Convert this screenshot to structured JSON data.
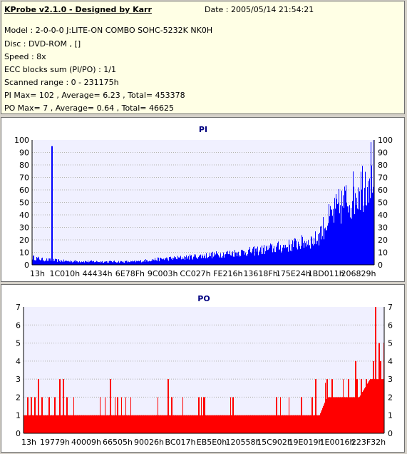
{
  "info": {
    "title": "KProbe v2.1.0 - Designed by Karr",
    "date": "Date : 2005/05/14 21:54:21",
    "lines": [
      "Model : 2-0-0-0 J:LITE-ON COMBO SOHC-5232K NK0H",
      "Disc : DVD-ROM ,  []",
      "Speed : 8x",
      "ECC blocks sum (PI/PO) : 1/1",
      "Scanned range : 0 - 231175h",
      "PI Max= 102 , Average= 6.23 , Total= 453378",
      "PO Max= 7 , Average= 0.64 , Total= 46625"
    ]
  },
  "colors": {
    "pi": "#0000ff",
    "po": "#ff0000",
    "plot_bg": "#f0f0ff",
    "title": "#000080",
    "grid": "#b0b0b0"
  },
  "chart_data": [
    {
      "type": "bar",
      "title": "PI",
      "ylim": [
        0,
        100
      ],
      "yticks": [
        0,
        10,
        20,
        30,
        40,
        50,
        60,
        70,
        80,
        90,
        100
      ],
      "xlabels": [
        "13h",
        "1C010h",
        "44434h",
        "6E78Fh",
        "9C003h",
        "CC027h",
        "FE216h",
        "13618Fh",
        "175E24h",
        "1BD011h",
        "206829h"
      ],
      "envelope": [
        [
          0,
          7
        ],
        [
          0.03,
          5
        ],
        [
          0.1,
          3.5
        ],
        [
          0.2,
          3
        ],
        [
          0.3,
          3
        ],
        [
          0.36,
          5
        ],
        [
          0.45,
          7
        ],
        [
          0.55,
          10
        ],
        [
          0.65,
          13
        ],
        [
          0.75,
          18
        ],
        [
          0.83,
          24
        ],
        [
          0.86,
          40
        ],
        [
          0.9,
          55
        ],
        [
          0.94,
          67
        ],
        [
          0.97,
          78
        ],
        [
          0.99,
          90
        ],
        [
          1,
          95
        ]
      ],
      "spikes": [
        [
          0.057,
          95
        ]
      ],
      "grid": true
    },
    {
      "type": "bar",
      "title": "PO",
      "ylim": [
        0,
        7
      ],
      "yticks": [
        0,
        1,
        2,
        3,
        4,
        5,
        6,
        7
      ],
      "xlabels": [
        "13h",
        "19779h",
        "40009h",
        "66505h",
        "90026h",
        "BC017h",
        "EB5E0h",
        "120558h",
        "15C902h",
        "19E019h",
        "1E0016h",
        "223F32h"
      ],
      "envelope": [
        [
          0,
          1
        ],
        [
          0.82,
          1
        ],
        [
          0.84,
          2
        ],
        [
          0.93,
          2
        ],
        [
          0.96,
          3
        ],
        [
          1,
          3
        ]
      ],
      "spikes": [
        [
          0.01,
          2
        ],
        [
          0.02,
          2
        ],
        [
          0.03,
          2
        ],
        [
          0.04,
          3
        ],
        [
          0.05,
          2
        ],
        [
          0.07,
          2
        ],
        [
          0.085,
          2
        ],
        [
          0.1,
          3
        ],
        [
          0.11,
          3
        ],
        [
          0.12,
          2
        ],
        [
          0.24,
          3
        ],
        [
          0.26,
          2
        ],
        [
          0.4,
          3
        ],
        [
          0.41,
          2
        ],
        [
          0.5,
          2
        ],
        [
          0.58,
          2
        ],
        [
          0.7,
          2
        ],
        [
          0.77,
          2
        ],
        [
          0.8,
          2
        ],
        [
          0.81,
          3
        ],
        [
          0.84,
          3
        ],
        [
          0.855,
          3
        ],
        [
          0.87,
          2
        ],
        [
          0.9,
          3
        ],
        [
          0.92,
          4
        ],
        [
          0.935,
          3
        ],
        [
          0.95,
          3
        ],
        [
          0.97,
          4
        ],
        [
          0.975,
          7
        ],
        [
          0.985,
          5
        ],
        [
          0.99,
          4
        ],
        [
          1,
          5
        ]
      ],
      "grid": true
    }
  ]
}
